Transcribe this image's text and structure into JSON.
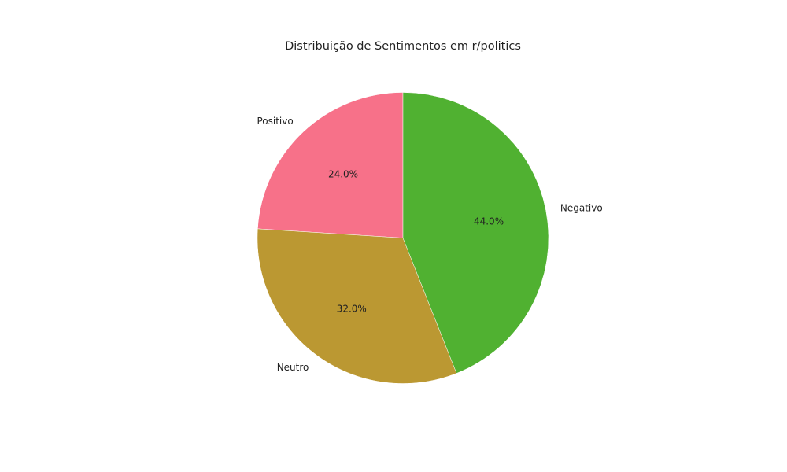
{
  "chart_data": {
    "type": "pie",
    "title": "Distribuição de Sentimentos em r/politics",
    "categories": [
      "Positivo",
      "Neutro",
      "Negativo"
    ],
    "values": [
      24.0,
      32.0,
      44.0
    ],
    "percent_labels": [
      "24.0%",
      "32.0%",
      "44.0%"
    ],
    "colors": [
      "#f77189",
      "#bb9832",
      "#50b131"
    ],
    "start_angle_deg": 90,
    "direction": "counterclockwise"
  }
}
